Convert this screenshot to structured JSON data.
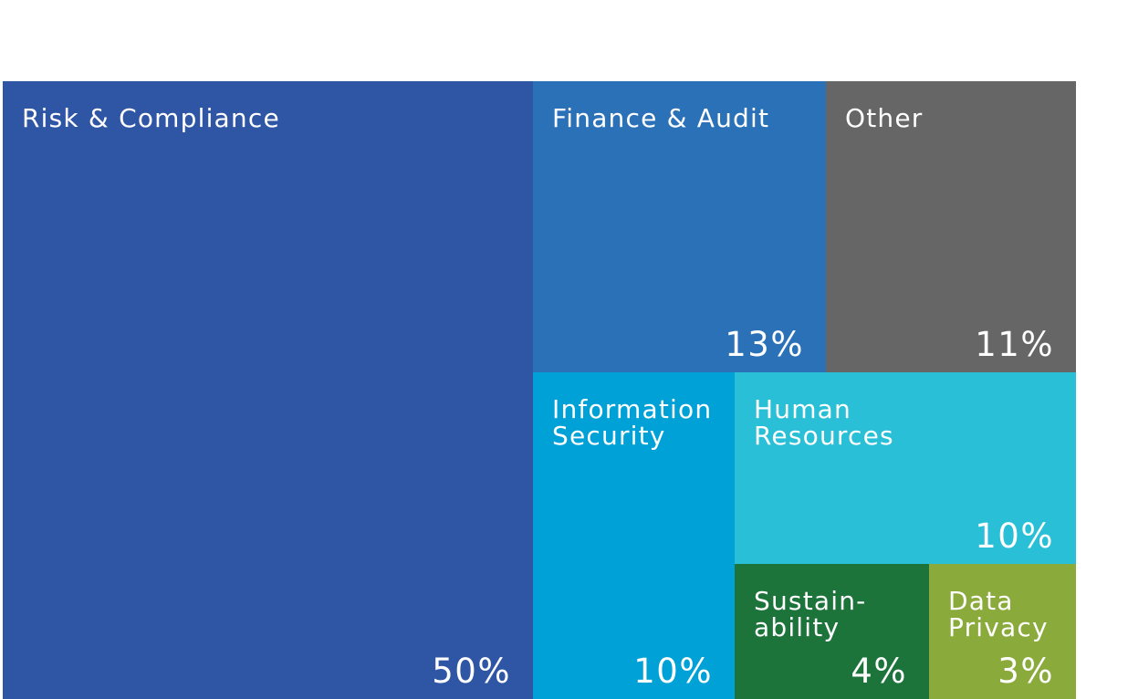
{
  "chart_data": {
    "type": "treemap",
    "series": [
      {
        "name": "Risk & Compliance",
        "label": "Risk & Compliance",
        "value": 50,
        "value_label": "50%",
        "color": "#2f55a5"
      },
      {
        "name": "Finance & Audit",
        "label": "Finance & Audit",
        "value": 13,
        "value_label": "13%",
        "color": "#2b71b8"
      },
      {
        "name": "Other",
        "label": "Other",
        "value": 11,
        "value_label": "11%",
        "color": "#666666"
      },
      {
        "name": "Information Security",
        "label": "Information\nSecurity",
        "value": 10,
        "value_label": "10%",
        "color": "#00a1d6"
      },
      {
        "name": "Human Resources",
        "label": "Human\nResources",
        "value": 10,
        "value_label": "10%",
        "color": "#29bfd6"
      },
      {
        "name": "Sustainability",
        "label": "Sustain-\nability",
        "value": 4,
        "value_label": "4%",
        "color": "#1c743b"
      },
      {
        "name": "Data Privacy",
        "label": "Data\nPrivacy",
        "value": 3,
        "value_label": "3%",
        "color": "#8aab3c"
      }
    ]
  }
}
